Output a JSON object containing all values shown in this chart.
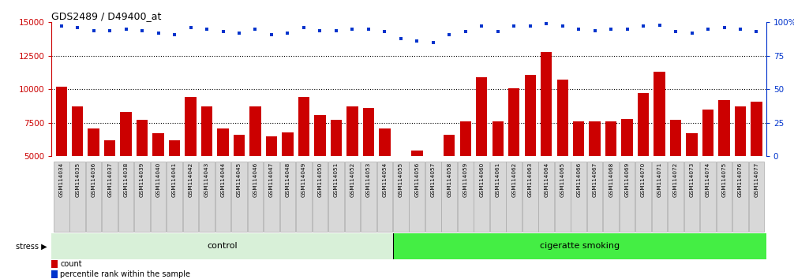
{
  "title": "GDS2489 / D49400_at",
  "samples": [
    "GSM114034",
    "GSM114035",
    "GSM114036",
    "GSM114037",
    "GSM114038",
    "GSM114039",
    "GSM114040",
    "GSM114041",
    "GSM114042",
    "GSM114043",
    "GSM114044",
    "GSM114045",
    "GSM114046",
    "GSM114047",
    "GSM114048",
    "GSM114049",
    "GSM114050",
    "GSM114051",
    "GSM114052",
    "GSM114053",
    "GSM114054",
    "GSM114055",
    "GSM114056",
    "GSM114057",
    "GSM114058",
    "GSM114059",
    "GSM114060",
    "GSM114061",
    "GSM114062",
    "GSM114063",
    "GSM114064",
    "GSM114065",
    "GSM114066",
    "GSM114067",
    "GSM114068",
    "GSM114069",
    "GSM114070",
    "GSM114071",
    "GSM114072",
    "GSM114073",
    "GSM114074",
    "GSM114075",
    "GSM114076",
    "GSM114077"
  ],
  "counts": [
    10200,
    8700,
    7100,
    6200,
    8300,
    7700,
    6700,
    6200,
    9400,
    8700,
    7100,
    6600,
    8700,
    6500,
    6800,
    9400,
    8100,
    7700,
    8700,
    8600,
    7100,
    5000,
    5400,
    4800,
    6600,
    7600,
    10900,
    7600,
    10100,
    11100,
    12800,
    10700,
    7600,
    7600,
    7600,
    7800,
    9700,
    11300,
    7700,
    6700,
    8500,
    9200,
    8700,
    9100
  ],
  "percentile_ranks": [
    97,
    96,
    94,
    94,
    95,
    94,
    92,
    91,
    96,
    95,
    93,
    92,
    95,
    91,
    92,
    96,
    94,
    94,
    95,
    95,
    93,
    88,
    86,
    85,
    91,
    93,
    97,
    93,
    97,
    97,
    99,
    97,
    95,
    94,
    95,
    95,
    97,
    98,
    93,
    92,
    95,
    96,
    95,
    93
  ],
  "bar_color": "#cc0000",
  "dot_color": "#0033cc",
  "left_ylim": [
    5000,
    15000
  ],
  "left_yticks": [
    5000,
    7500,
    10000,
    12500,
    15000
  ],
  "right_ylim": [
    0,
    100
  ],
  "right_yticks": [
    0,
    25,
    50,
    75,
    100
  ],
  "n_control": 21,
  "group_labels": [
    "control",
    "cigeratte smoking"
  ],
  "control_color": "#d8f0d8",
  "smoking_color": "#44ee44",
  "stress_label": "stress",
  "legend_count_label": "count",
  "legend_pct_label": "percentile rank within the sample",
  "background_color": "#ffffff",
  "left_axis_color": "#cc0000",
  "right_axis_color": "#0033cc",
  "grid_color": "#000000",
  "label_box_color": "#d8d8d8",
  "label_box_edge": "#aaaaaa"
}
